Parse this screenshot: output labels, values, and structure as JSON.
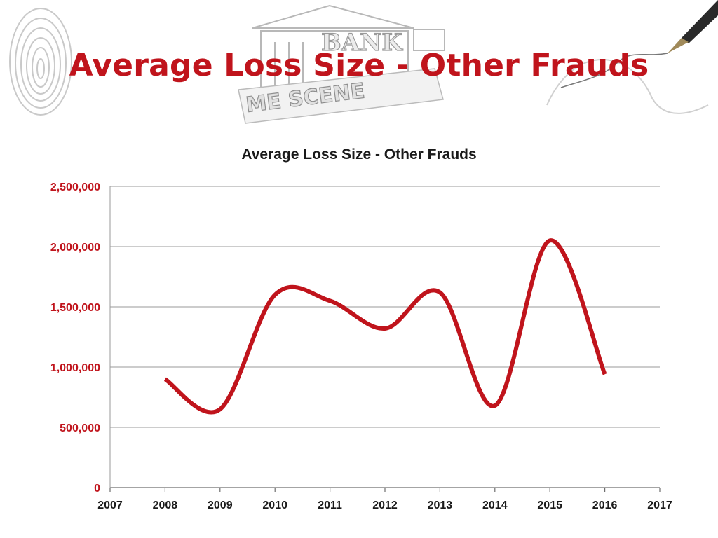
{
  "slide": {
    "title": "Average Loss Size - Other Frauds",
    "accent_color": "#c0141c"
  },
  "background_graphics": {
    "decorations": [
      "fingerprint-icon",
      "bank-building-icon",
      "crime-scene-tape",
      "fountain-pen-icon"
    ],
    "bank_text": "BANK",
    "scene_text": "ME SCENE"
  },
  "chart_data": {
    "type": "line",
    "title": "Average Loss Size - Other Frauds",
    "xlabel": "",
    "ylabel": "",
    "x": [
      2008,
      2009,
      2010,
      2011,
      2012,
      2013,
      2014,
      2015,
      2016
    ],
    "values": [
      900000,
      650000,
      1600000,
      1550000,
      1320000,
      1620000,
      680000,
      2050000,
      940000
    ],
    "xlim": [
      2007,
      2017
    ],
    "ylim": [
      0,
      2500000
    ],
    "x_ticks": [
      "2007",
      "2008",
      "2009",
      "2010",
      "2011",
      "2012",
      "2013",
      "2014",
      "2015",
      "2016",
      "2017"
    ],
    "y_ticks": [
      "0",
      "500,000",
      "1,000,000",
      "1,500,000",
      "2,000,000",
      "2,500,000"
    ],
    "y_tick_values": [
      0,
      500000,
      1000000,
      1500000,
      2000000,
      2500000
    ],
    "line_color": "#c0141c",
    "smooth": true,
    "grid": true,
    "legend": "none"
  }
}
